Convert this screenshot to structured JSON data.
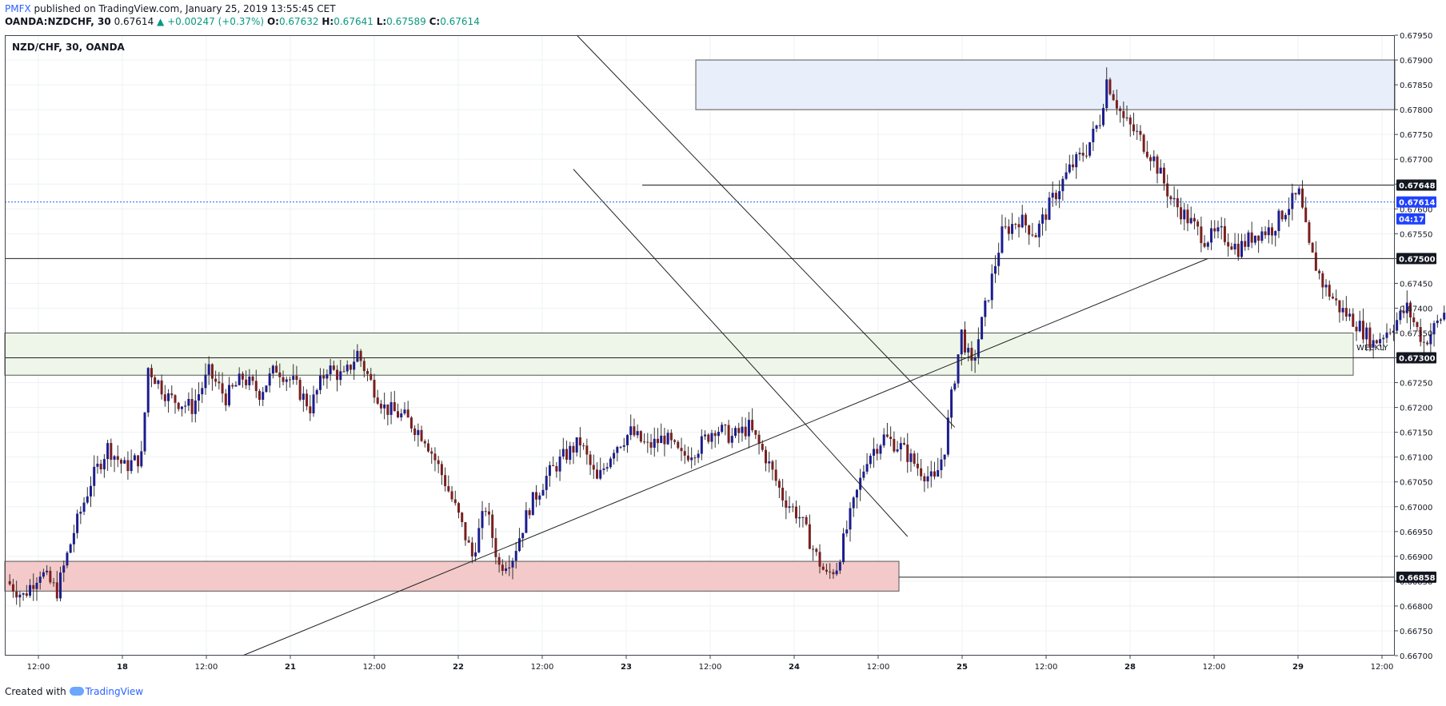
{
  "header": {
    "brand": "PMFX",
    "published_text": "published on TradingView.com, January 25, 2019 13:55:45 CET",
    "symbol_line": "OANDA:NZDCHF, 30",
    "last": "0.67614",
    "change": "▲ +0.00247 (+0.37%)",
    "o_label": "O:",
    "o_value": "0.67632",
    "h_label": "H:",
    "h_value": "0.67641",
    "l_label": "L:",
    "l_value": "0.67589",
    "c_label": "C:",
    "c_value": "0.67614"
  },
  "pane_label": "NZD/CHF, 30, OANDA",
  "footer": {
    "created_with": "Created with",
    "brand": "TradingView"
  },
  "colors": {
    "bull": "#1b1d8f",
    "bear": "#7a1f1f",
    "grid": "#eef0f3",
    "blue_zone": "#e9eefb",
    "green_zone": "#eef6e9",
    "red_zone": "#f4c9c9",
    "price_line": "#2962ff"
  },
  "chart_data": {
    "type": "candlestick",
    "symbol": "NZD/CHF, 30, OANDA",
    "ylim": [
      0.667,
      0.6795
    ],
    "y_ticks": [
      "0.67950",
      "0.67900",
      "0.67850",
      "0.67800",
      "0.67750",
      "0.67700",
      "0.67650",
      "0.67600",
      "0.67550",
      "0.67500",
      "0.67450",
      "0.67400",
      "0.67350",
      "0.67300",
      "0.67250",
      "0.67200",
      "0.67150",
      "0.67100",
      "0.67050",
      "0.67000",
      "0.66950",
      "0.66900",
      "0.66850",
      "0.66800",
      "0.66750",
      "0.66700"
    ],
    "x_ticks": [
      "12:00",
      "18",
      "12:00",
      "21",
      "12:00",
      "22",
      "12:00",
      "23",
      "12:00",
      "24",
      "12:00",
      "25",
      "12:00",
      "28",
      "12:00",
      "29",
      "12:00"
    ],
    "price_labels": [
      {
        "text": "0.67648",
        "value": 0.67648,
        "style": "dark"
      },
      {
        "text": "0.67614",
        "value": 0.67614,
        "style": "blue"
      },
      {
        "text": "04:17",
        "value": 0.6758,
        "style": "blue"
      },
      {
        "text": "0.67500",
        "value": 0.675,
        "style": "dark"
      },
      {
        "text": "0.67300",
        "value": 0.673,
        "style": "dark"
      },
      {
        "text": "0.66858",
        "value": 0.66858,
        "style": "dark"
      }
    ],
    "zone_label": "WEEKLY",
    "close_path": [
      [
        0,
        0.6685
      ],
      [
        5,
        0.6682
      ],
      [
        10,
        0.6687
      ],
      [
        15,
        0.6683
      ],
      [
        20,
        0.6695
      ],
      [
        25,
        0.6705
      ],
      [
        30,
        0.6712
      ],
      [
        35,
        0.6708
      ],
      [
        40,
        0.671
      ],
      [
        42,
        0.6728
      ],
      [
        48,
        0.6722
      ],
      [
        55,
        0.672
      ],
      [
        60,
        0.6727
      ],
      [
        65,
        0.6722
      ],
      [
        70,
        0.6726
      ],
      [
        75,
        0.6723
      ],
      [
        80,
        0.6728
      ],
      [
        85,
        0.6725
      ],
      [
        90,
        0.672
      ],
      [
        95,
        0.6728
      ],
      [
        100,
        0.6726
      ],
      [
        104,
        0.6731
      ],
      [
        108,
        0.6725
      ],
      [
        112,
        0.672
      ],
      [
        118,
        0.6718
      ],
      [
        124,
        0.6714
      ],
      [
        130,
        0.6705
      ],
      [
        134,
        0.6698
      ],
      [
        138,
        0.669
      ],
      [
        142,
        0.67
      ],
      [
        146,
        0.6688
      ],
      [
        150,
        0.669
      ],
      [
        155,
        0.67
      ],
      [
        160,
        0.6706
      ],
      [
        165,
        0.671
      ],
      [
        170,
        0.6713
      ],
      [
        175,
        0.6705
      ],
      [
        180,
        0.6712
      ],
      [
        185,
        0.6715
      ],
      [
        190,
        0.6712
      ],
      [
        195,
        0.6714
      ],
      [
        200,
        0.671
      ],
      [
        205,
        0.6712
      ],
      [
        210,
        0.6716
      ],
      [
        215,
        0.6714
      ],
      [
        220,
        0.6716
      ],
      [
        225,
        0.671
      ],
      [
        230,
        0.6702
      ],
      [
        235,
        0.6698
      ],
      [
        240,
        0.669
      ],
      [
        243,
        0.6686
      ],
      [
        246,
        0.6688
      ],
      [
        250,
        0.6698
      ],
      [
        255,
        0.671
      ],
      [
        260,
        0.6714
      ],
      [
        265,
        0.6712
      ],
      [
        270,
        0.6708
      ],
      [
        275,
        0.6705
      ],
      [
        278,
        0.6712
      ],
      [
        280,
        0.6722
      ],
      [
        283,
        0.6735
      ],
      [
        286,
        0.6728
      ],
      [
        290,
        0.674
      ],
      [
        295,
        0.6755
      ],
      [
        300,
        0.6758
      ],
      [
        305,
        0.6755
      ],
      [
        310,
        0.6762
      ],
      [
        315,
        0.6768
      ],
      [
        320,
        0.6772
      ],
      [
        324,
        0.6778
      ],
      [
        326,
        0.6786
      ],
      [
        328,
        0.6783
      ],
      [
        331,
        0.6778
      ],
      [
        335,
        0.6775
      ],
      [
        340,
        0.677
      ],
      [
        345,
        0.6762
      ],
      [
        350,
        0.6758
      ],
      [
        355,
        0.6754
      ],
      [
        360,
        0.6755
      ],
      [
        365,
        0.6752
      ],
      [
        370,
        0.6755
      ],
      [
        375,
        0.6756
      ],
      [
        379,
        0.676
      ],
      [
        383,
        0.6763
      ],
      [
        386,
        0.6752
      ],
      [
        390,
        0.6745
      ],
      [
        395,
        0.674
      ],
      [
        400,
        0.6737
      ],
      [
        405,
        0.6733
      ],
      [
        410,
        0.6736
      ],
      [
        415,
        0.674
      ],
      [
        420,
        0.6733
      ],
      [
        425,
        0.6738
      ],
      [
        430,
        0.6743
      ],
      [
        435,
        0.6747
      ],
      [
        440,
        0.6744
      ],
      [
        445,
        0.674
      ],
      [
        450,
        0.6738
      ],
      [
        455,
        0.6743
      ],
      [
        460,
        0.6742
      ],
      [
        465,
        0.6738
      ],
      [
        470,
        0.6734
      ],
      [
        475,
        0.6736
      ],
      [
        478,
        0.673
      ],
      [
        481,
        0.6726
      ],
      [
        484,
        0.6724
      ],
      [
        487,
        0.6728
      ],
      [
        490,
        0.6735
      ],
      [
        495,
        0.6743
      ],
      [
        500,
        0.6745
      ],
      [
        505,
        0.6742
      ],
      [
        508,
        0.6748
      ],
      [
        511,
        0.6752
      ],
      [
        514,
        0.6747
      ],
      [
        517,
        0.675
      ],
      [
        520,
        0.6757
      ],
      [
        523,
        0.6763
      ],
      [
        526,
        0.6761
      ]
    ]
  }
}
